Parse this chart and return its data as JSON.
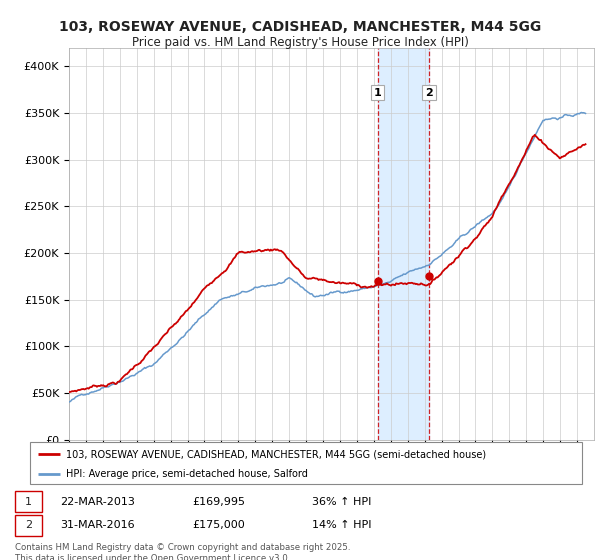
{
  "title_line1": "103, ROSEWAY AVENUE, CADISHEAD, MANCHESTER, M44 5GG",
  "title_line2": "Price paid vs. HM Land Registry's House Price Index (HPI)",
  "ylim": [
    0,
    420000
  ],
  "yticks": [
    0,
    50000,
    100000,
    150000,
    200000,
    250000,
    300000,
    350000,
    400000
  ],
  "ytick_labels": [
    "£0",
    "£50K",
    "£100K",
    "£150K",
    "£200K",
    "£250K",
    "£300K",
    "£350K",
    "£400K"
  ],
  "color_red": "#cc0000",
  "color_blue": "#6699cc",
  "color_highlight": "#ddeeff",
  "color_grid": "#cccccc",
  "color_bg": "#ffffff",
  "purchase1_date": "22-MAR-2013",
  "purchase1_price": "£169,995",
  "purchase1_hpi": "36% ↑ HPI",
  "purchase1_x": 2013.22,
  "purchase1_y": 169995,
  "purchase2_date": "31-MAR-2016",
  "purchase2_price": "£175,000",
  "purchase2_hpi": "14% ↑ HPI",
  "purchase2_x": 2016.25,
  "purchase2_y": 175000,
  "legend_line1": "103, ROSEWAY AVENUE, CADISHEAD, MANCHESTER, M44 5GG (semi-detached house)",
  "legend_line2": "HPI: Average price, semi-detached house, Salford",
  "footnote": "Contains HM Land Registry data © Crown copyright and database right 2025.\nThis data is licensed under the Open Government Licence v3.0.",
  "xmin": 1995,
  "xmax": 2026
}
